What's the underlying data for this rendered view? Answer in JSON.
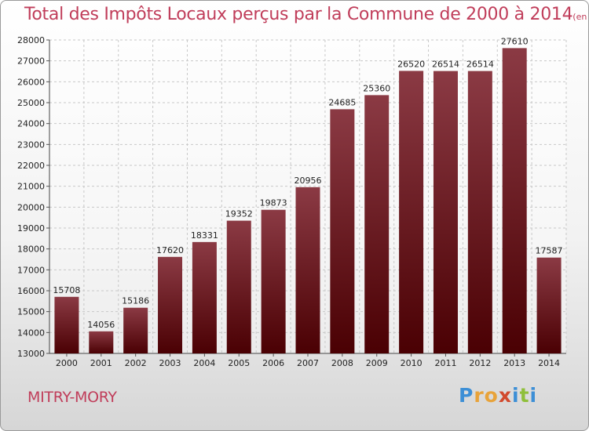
{
  "chart_data": {
    "type": "bar",
    "title": "Total des Impôts Locaux perçus par la Commune de 2000 à 2014",
    "unit_note": "(en milliers d'€)",
    "categories": [
      "2000",
      "2001",
      "2002",
      "2003",
      "2004",
      "2005",
      "2006",
      "2007",
      "2008",
      "2009",
      "2010",
      "2011",
      "2012",
      "2013",
      "2014"
    ],
    "values": [
      15708,
      14056,
      15186,
      17620,
      18331,
      19352,
      19873,
      20956,
      24685,
      25360,
      26520,
      26514,
      26514,
      27610,
      17587
    ],
    "ylim": [
      13000,
      28000
    ],
    "yticks": [
      13000,
      14000,
      15000,
      16000,
      17000,
      18000,
      19000,
      20000,
      21000,
      22000,
      23000,
      24000,
      25000,
      26000,
      27000,
      28000
    ],
    "xlabel": "",
    "ylabel": "",
    "grid": true,
    "bar_color_top": "#8b3a44",
    "bar_color_bottom": "#4a0003"
  },
  "commune_name": "MITRY-MORY",
  "logo": {
    "text": "Proxiti",
    "letters": [
      {
        "ch": "P",
        "color": "#3d8fd6"
      },
      {
        "ch": "r",
        "color": "#e8a33a"
      },
      {
        "ch": "o",
        "color": "#e8a33a"
      },
      {
        "ch": "x",
        "color": "#d24a2e"
      },
      {
        "ch": "i",
        "color": "#3d8fd6"
      },
      {
        "ch": "t",
        "color": "#8fbf3a"
      },
      {
        "ch": "i",
        "color": "#3d8fd6"
      }
    ]
  }
}
